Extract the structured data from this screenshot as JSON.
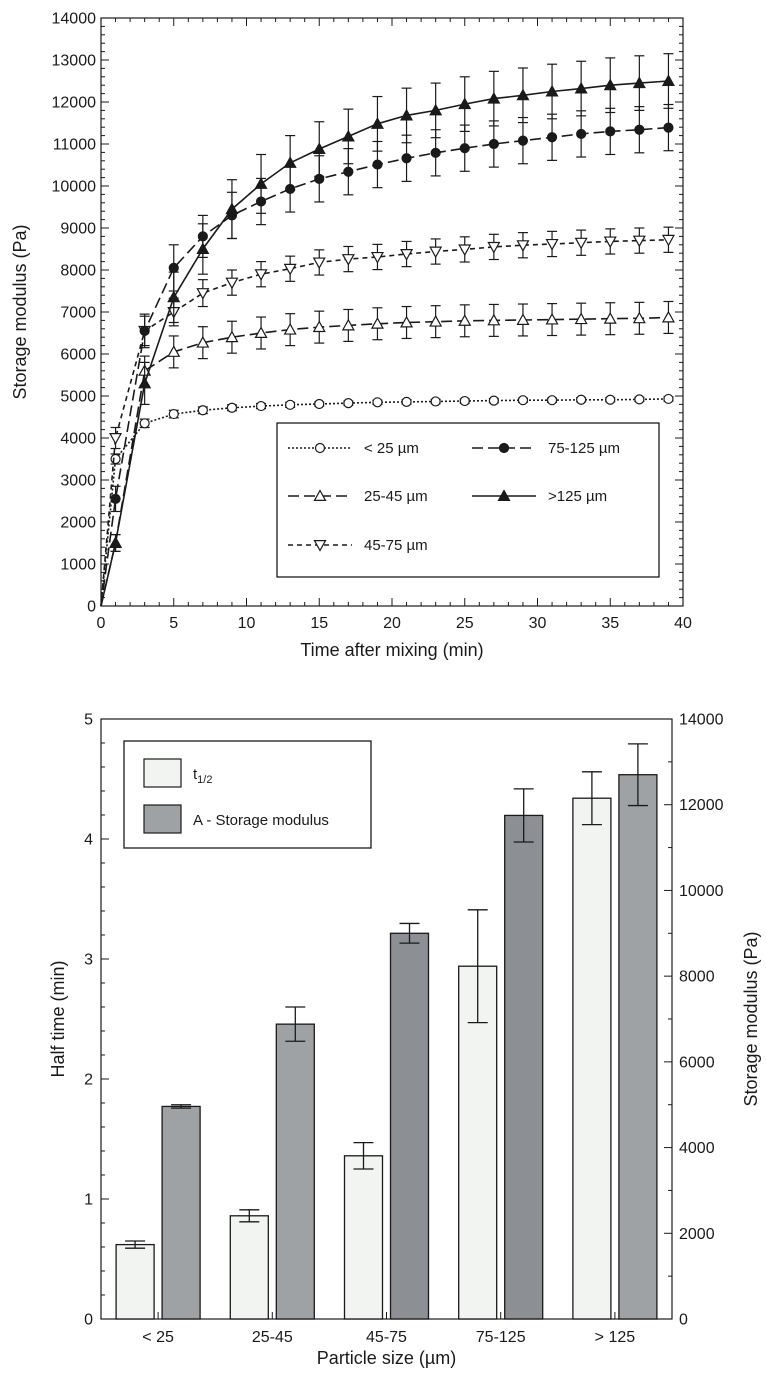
{
  "chart_data": [
    {
      "type": "line",
      "xlabel": "Time after mixing (min)",
      "ylabel": "Storage modulus (Pa)",
      "xlim": [
        0,
        40
      ],
      "ylim": [
        0,
        14000
      ],
      "xticks": [
        0,
        5,
        10,
        15,
        20,
        25,
        30,
        35,
        40
      ],
      "yticks": [
        0,
        1000,
        2000,
        3000,
        4000,
        5000,
        6000,
        7000,
        8000,
        9000,
        10000,
        11000,
        12000,
        13000,
        14000
      ],
      "grid": false,
      "legend_position": "bottom-right",
      "x": [
        1,
        3,
        5,
        7,
        9,
        11,
        13,
        15,
        17,
        19,
        21,
        23,
        25,
        27,
        29,
        31,
        33,
        35,
        37,
        39
      ],
      "series": [
        {
          "name": "< 25 µm",
          "marker": "circle-open",
          "dash": "dotted",
          "values": [
            3500,
            4350,
            4570,
            4660,
            4720,
            4760,
            4790,
            4810,
            4830,
            4850,
            4860,
            4870,
            4880,
            4890,
            4900,
            4900,
            4910,
            4910,
            4920,
            4930
          ],
          "errors": [
            120,
            100,
            90,
            80,
            70,
            60,
            60,
            50,
            50,
            50,
            50,
            50,
            50,
            50,
            50,
            50,
            50,
            50,
            50,
            50
          ]
        },
        {
          "name": "25-45 µm",
          "marker": "triangle-up-open",
          "dash": "long-dash",
          "values": [
            1500,
            5600,
            6050,
            6270,
            6400,
            6500,
            6580,
            6640,
            6680,
            6720,
            6750,
            6770,
            6790,
            6800,
            6810,
            6820,
            6830,
            6840,
            6850,
            6870
          ],
          "errors": [
            200,
            350,
            380,
            380,
            380,
            380,
            380,
            380,
            380,
            380,
            380,
            380,
            380,
            380,
            380,
            380,
            380,
            380,
            380,
            380
          ]
        },
        {
          "name": "45-75 µm",
          "marker": "triangle-down-open",
          "dash": "short-dash",
          "values": [
            4000,
            6550,
            7000,
            7450,
            7700,
            7900,
            8030,
            8180,
            8260,
            8310,
            8380,
            8440,
            8490,
            8550,
            8590,
            8620,
            8650,
            8680,
            8700,
            8720
          ],
          "errors": [
            250,
            350,
            330,
            320,
            300,
            300,
            300,
            300,
            300,
            300,
            300,
            300,
            300,
            300,
            300,
            300,
            300,
            300,
            300,
            300
          ]
        },
        {
          "name": "75-125 µm",
          "marker": "circle-filled",
          "dash": "long-dash",
          "values": [
            2550,
            6550,
            8050,
            8800,
            9300,
            9630,
            9930,
            10170,
            10340,
            10510,
            10660,
            10790,
            10900,
            11000,
            11080,
            11160,
            11240,
            11300,
            11340,
            11390
          ],
          "errors": [
            300,
            400,
            550,
            500,
            550,
            550,
            550,
            550,
            550,
            550,
            550,
            550,
            550,
            550,
            550,
            550,
            550,
            550,
            550,
            550
          ]
        },
        {
          "name": ">125 µm",
          "marker": "triangle-up-filled",
          "dash": "solid",
          "values": [
            1500,
            5300,
            7350,
            8500,
            9450,
            10050,
            10550,
            10880,
            11180,
            11480,
            11680,
            11800,
            11950,
            12080,
            12160,
            12250,
            12320,
            12400,
            12450,
            12500
          ],
          "errors": [
            200,
            500,
            600,
            600,
            700,
            700,
            650,
            650,
            650,
            650,
            650,
            650,
            650,
            650,
            650,
            650,
            650,
            650,
            650,
            650
          ]
        }
      ]
    },
    {
      "type": "bar",
      "xlabel": "Particle size (µm)",
      "ylabel": "Half time (min)",
      "ylabel_right": "Storage modulus (Pa)",
      "categories": [
        "< 25",
        "25-45",
        "45-75",
        "75-125",
        "> 125"
      ],
      "ylim": [
        0,
        5
      ],
      "ylim_right": [
        0,
        14000
      ],
      "yticks": [
        0,
        1,
        2,
        3,
        4,
        5
      ],
      "yticks_right": [
        0,
        2000,
        4000,
        6000,
        8000,
        10000,
        12000,
        14000
      ],
      "legend_position": "top-left",
      "series": [
        {
          "name": "t1/2",
          "label_main": "t",
          "label_sub": "1/2",
          "axis": "left",
          "color": "#f2f4f2",
          "values": [
            0.62,
            0.86,
            1.36,
            2.94,
            4.34
          ],
          "errors": [
            0.03,
            0.05,
            0.11,
            0.47,
            0.22
          ]
        },
        {
          "name": "A - Storage modulus",
          "axis": "right",
          "color": "#9fa2a5",
          "color_alt": "#8c8f93",
          "values": [
            4960,
            6880,
            9000,
            11750,
            12700
          ],
          "errors": [
            40,
            400,
            230,
            620,
            720
          ]
        }
      ]
    }
  ]
}
